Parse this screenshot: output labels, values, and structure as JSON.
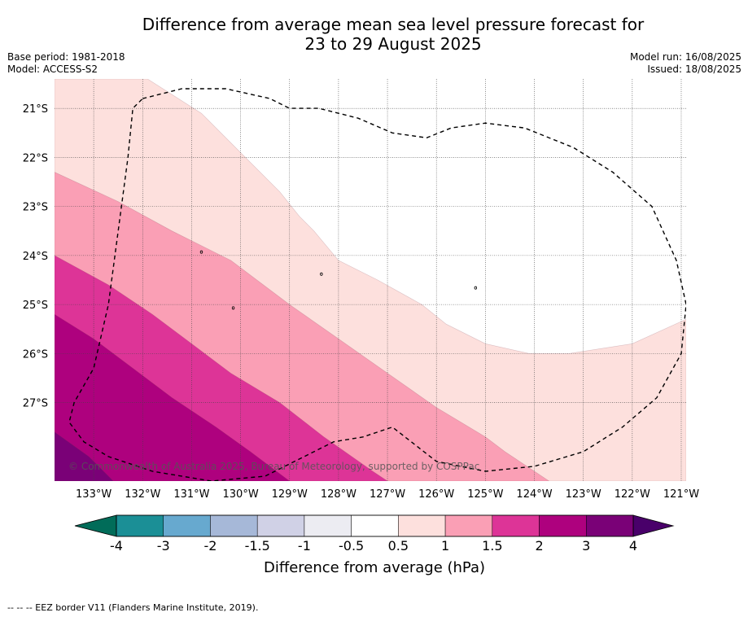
{
  "title": {
    "line1": "Difference from average mean sea level pressure forecast for",
    "line2": "23 to 29 August 2025"
  },
  "meta": {
    "base_period": "Base period: 1981-2018",
    "model": "Model: ACCESS-S2",
    "model_run": "Model run: 16/08/2025",
    "issued": "Issued: 18/08/2025"
  },
  "copyright": "© Commonwealth of Australia 2025, Bureau of Meteorology, supported by COSPPac",
  "footnote": "--  --  -- EEZ border V11 (Flanders Marine Institute, 2019).",
  "chart_data": {
    "type": "heatmap",
    "xlabel": "",
    "ylabel": "",
    "xlim": [
      -133.8,
      -120.9
    ],
    "ylim": [
      -28.6,
      -20.4
    ],
    "x_ticks": [
      {
        "value": -133,
        "label": "133°W"
      },
      {
        "value": -132,
        "label": "132°W"
      },
      {
        "value": -131,
        "label": "131°W"
      },
      {
        "value": -130,
        "label": "130°W"
      },
      {
        "value": -129,
        "label": "129°W"
      },
      {
        "value": -128,
        "label": "128°W"
      },
      {
        "value": -127,
        "label": "127°W"
      },
      {
        "value": -126,
        "label": "126°W"
      },
      {
        "value": -125,
        "label": "125°W"
      },
      {
        "value": -124,
        "label": "124°W"
      },
      {
        "value": -123,
        "label": "123°W"
      },
      {
        "value": -122,
        "label": "122°W"
      },
      {
        "value": -121,
        "label": "121°W"
      }
    ],
    "y_ticks": [
      {
        "value": -21,
        "label": "21°S"
      },
      {
        "value": -22,
        "label": "22°S"
      },
      {
        "value": -23,
        "label": "23°S"
      },
      {
        "value": -24,
        "label": "24°S"
      },
      {
        "value": -25,
        "label": "25°S"
      },
      {
        "value": -26,
        "label": "26°S"
      },
      {
        "value": -27,
        "label": "27°S"
      }
    ],
    "grid": true,
    "colorbar": {
      "label": "Difference from average (hPa)",
      "bounds": [
        -4,
        -3,
        -2,
        -1.5,
        -1,
        -0.5,
        0.5,
        1,
        1.5,
        2,
        3,
        4
      ],
      "tick_labels": [
        "-4",
        "-3",
        "-2",
        "-1.5",
        "-1",
        "-0.5",
        "0.5",
        "1",
        "1.5",
        "2",
        "3",
        "4"
      ],
      "colors": [
        "#1b8f96",
        "#67a9cf",
        "#a6b8d8",
        "#d0d1e6",
        "#ececf2",
        "#ffffff",
        "#fde0dd",
        "#fa9fb5",
        "#dd3497",
        "#ae017e",
        "#7a0177"
      ],
      "under_color": "#016c59",
      "over_color": "#49006a"
    },
    "fill_levels": [
      {
        "min": 0.5,
        "max": 1,
        "color": "#fde0dd",
        "boundary": [
          [
            -131.9,
            -20.4
          ],
          [
            -130.8,
            -21.1
          ],
          [
            -130,
            -21.9
          ],
          [
            -129.2,
            -22.7
          ],
          [
            -128.8,
            -23.2
          ],
          [
            -128.5,
            -23.5
          ],
          [
            -128,
            -24.1
          ],
          [
            -127.2,
            -24.5
          ],
          [
            -126.3,
            -25.0
          ],
          [
            -125.8,
            -25.4
          ],
          [
            -125.0,
            -25.8
          ],
          [
            -124.1,
            -26.0
          ],
          [
            -123.3,
            -26.0
          ],
          [
            -122.0,
            -25.8
          ],
          [
            -120.9,
            -25.3
          ]
        ]
      },
      {
        "min": 1,
        "max": 1.5,
        "color": "#fa9fb5",
        "boundary": [
          [
            -133.8,
            -22.3
          ],
          [
            -132.5,
            -22.9
          ],
          [
            -131.4,
            -23.5
          ],
          [
            -130.2,
            -24.1
          ],
          [
            -129.0,
            -25.0
          ],
          [
            -128.0,
            -25.7
          ],
          [
            -127.0,
            -26.4
          ],
          [
            -126.0,
            -27.1
          ],
          [
            -125.0,
            -27.7
          ],
          [
            -124.6,
            -28.0
          ],
          [
            -123.7,
            -28.6
          ]
        ]
      },
      {
        "min": 1.5,
        "max": 2,
        "color": "#dd3497",
        "boundary": [
          [
            -133.8,
            -24.0
          ],
          [
            -132.7,
            -24.6
          ],
          [
            -131.8,
            -25.2
          ],
          [
            -131.0,
            -25.8
          ],
          [
            -130.2,
            -26.4
          ],
          [
            -129.2,
            -27.0
          ],
          [
            -128.3,
            -27.7
          ],
          [
            -127.3,
            -28.4
          ],
          [
            -127.0,
            -28.6
          ]
        ]
      },
      {
        "min": 2,
        "max": 3,
        "color": "#ae017e",
        "boundary": [
          [
            -133.8,
            -25.2
          ],
          [
            -133.0,
            -25.7
          ],
          [
            -132.2,
            -26.3
          ],
          [
            -131.4,
            -26.9
          ],
          [
            -130.5,
            -27.5
          ],
          [
            -129.8,
            -28.0
          ],
          [
            -129.0,
            -28.6
          ]
        ]
      },
      {
        "min": 3,
        "max": 4,
        "color": "#7a0177",
        "boundary": [
          [
            -133.8,
            -27.6
          ],
          [
            -133.1,
            -28.1
          ],
          [
            -132.6,
            -28.6
          ]
        ]
      }
    ],
    "eez_border": [
      [
        -132.0,
        -20.8
      ],
      [
        -131.2,
        -20.6
      ],
      [
        -130.3,
        -20.6
      ],
      [
        -129.4,
        -20.8
      ],
      [
        -129.0,
        -21.0
      ],
      [
        -128.4,
        -21.0
      ],
      [
        -127.6,
        -21.2
      ],
      [
        -126.9,
        -21.5
      ],
      [
        -126.2,
        -21.6
      ],
      [
        -125.7,
        -21.4
      ],
      [
        -125.0,
        -21.3
      ],
      [
        -124.2,
        -21.4
      ],
      [
        -123.2,
        -21.8
      ],
      [
        -122.4,
        -22.3
      ],
      [
        -121.6,
        -23.0
      ],
      [
        -121.1,
        -24.1
      ],
      [
        -120.9,
        -25.0
      ],
      [
        -121.0,
        -26.0
      ],
      [
        -121.5,
        -26.9
      ],
      [
        -122.2,
        -27.5
      ],
      [
        -123.0,
        -28.0
      ],
      [
        -124.0,
        -28.3
      ],
      [
        -125.0,
        -28.4
      ],
      [
        -126.0,
        -28.2
      ],
      [
        -126.9,
        -27.5
      ],
      [
        -127.5,
        -27.7
      ],
      [
        -128.1,
        -27.8
      ],
      [
        -128.7,
        -28.1
      ],
      [
        -129.5,
        -28.5
      ],
      [
        -130.6,
        -28.6
      ],
      [
        -131.8,
        -28.4
      ],
      [
        -132.7,
        -28.1
      ],
      [
        -133.2,
        -27.8
      ],
      [
        -133.5,
        -27.4
      ],
      [
        -133.4,
        -27.0
      ],
      [
        -133.0,
        -26.3
      ],
      [
        -132.7,
        -25.0
      ],
      [
        -132.5,
        -23.5
      ],
      [
        -132.3,
        -22.0
      ],
      [
        -132.2,
        -21.0
      ],
      [
        -132.0,
        -20.8
      ]
    ],
    "islands": [
      [
        -130.8,
        -23.93
      ],
      [
        -128.35,
        -24.38
      ],
      [
        -125.2,
        -24.66
      ],
      [
        -130.15,
        -25.07
      ]
    ]
  }
}
